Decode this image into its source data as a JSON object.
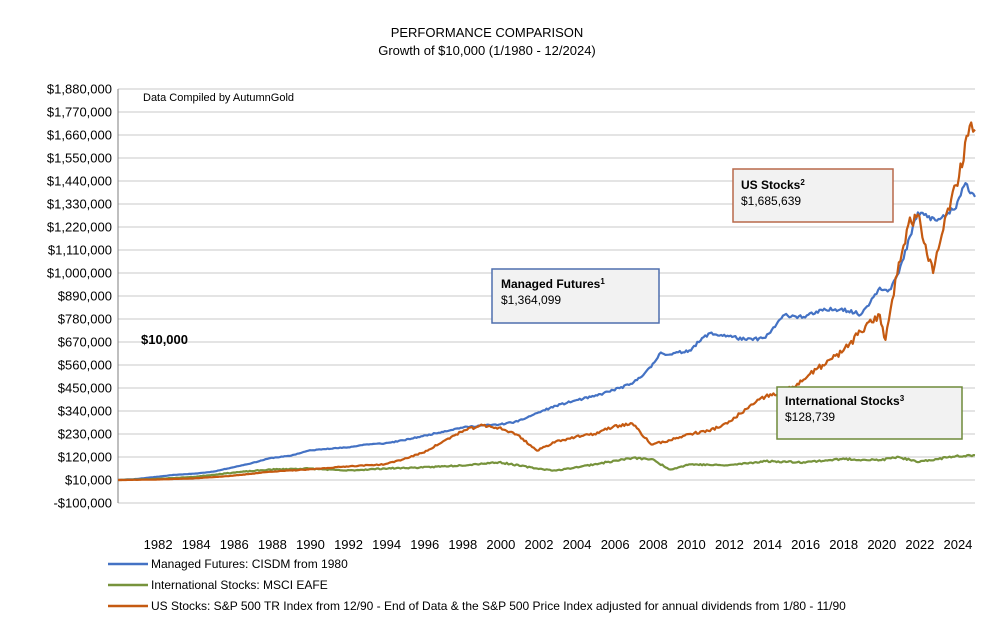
{
  "chart_data": {
    "type": "line",
    "title": "PERFORMANCE COMPARISON",
    "subtitle": "Growth of $10,000 (1/1980 - 12/2024)",
    "note": "Data Compiled by AutumnGold",
    "start_label": "$10,000",
    "xlim": [
      1980,
      2025
    ],
    "ylim": [
      -100000,
      1880000
    ],
    "y_ticks": [
      -100000,
      10000,
      120000,
      230000,
      340000,
      450000,
      560000,
      670000,
      780000,
      890000,
      1000000,
      1110000,
      1220000,
      1330000,
      1440000,
      1550000,
      1660000,
      1770000,
      1880000
    ],
    "y_tick_labels": [
      "-$100,000",
      "$10,000",
      "$120,000",
      "$230,000",
      "$340,000",
      "$450,000",
      "$560,000",
      "$670,000",
      "$780,000",
      "$890,000",
      "$1,000,000",
      "$1,110,000",
      "$1,220,000",
      "$1,330,000",
      "$1,440,000",
      "$1,550,000",
      "$1,660,000",
      "$1,770,000",
      "$1,880,000"
    ],
    "x_ticks": [
      1982,
      1984,
      1986,
      1988,
      1990,
      1992,
      1994,
      1996,
      1998,
      2000,
      2002,
      2004,
      2006,
      2008,
      2010,
      2012,
      2014,
      2016,
      2018,
      2020,
      2022,
      2024
    ],
    "x_tick_labels": [
      "1982",
      "1984",
      "1986",
      "1988",
      "1990",
      "1992",
      "1994",
      "1996",
      "1998",
      "2000",
      "2002",
      "2004",
      "2006",
      "2008",
      "2010",
      "2012",
      "2014",
      "2016",
      "2018",
      "2020",
      "2022",
      "2024"
    ],
    "grid": true,
    "legend_position": "bottom-left",
    "series": [
      {
        "name": "Managed Futures: CISDM from 1980",
        "color": "#4472c4",
        "x": [
          1980,
          1981,
          1982,
          1983,
          1984,
          1985,
          1986,
          1987,
          1988,
          1989,
          1990,
          1991,
          1992,
          1993,
          1994,
          1995,
          1996,
          1997,
          1998,
          1999,
          2000,
          2001,
          2002,
          2003,
          2004,
          2005,
          2006,
          2007,
          2008,
          2008.5,
          2009,
          2010,
          2011,
          2012,
          2013,
          2014,
          2015,
          2016,
          2017,
          2018,
          2019,
          2020,
          2020.5,
          2021,
          2022,
          2023,
          2024,
          2024.5,
          2025
        ],
        "values": [
          10000,
          15000,
          25000,
          35000,
          40000,
          50000,
          70000,
          90000,
          115000,
          125000,
          150000,
          160000,
          165000,
          180000,
          185000,
          200000,
          220000,
          240000,
          260000,
          270000,
          275000,
          290000,
          330000,
          365000,
          390000,
          410000,
          440000,
          470000,
          550000,
          620000,
          610000,
          630000,
          710000,
          700000,
          680000,
          690000,
          800000,
          790000,
          820000,
          830000,
          800000,
          930000,
          920000,
          1000000,
          1290000,
          1250000,
          1310000,
          1430000,
          1364099
        ]
      },
      {
        "name": "International Stocks: MSCI EAFE",
        "color": "#77933c",
        "x": [
          1980,
          1982,
          1984,
          1986,
          1988,
          1990,
          1992,
          1994,
          1996,
          1998,
          2000,
          2002,
          2003,
          2005,
          2007,
          2008,
          2009,
          2010,
          2012,
          2014,
          2016,
          2018,
          2020,
          2021,
          2022,
          2023,
          2024,
          2025
        ],
        "values": [
          10000,
          15000,
          25000,
          45000,
          60000,
          65000,
          55000,
          65000,
          70000,
          80000,
          95000,
          65000,
          55000,
          85000,
          115000,
          110000,
          60000,
          85000,
          80000,
          100000,
          95000,
          110000,
          105000,
          120000,
          95000,
          110000,
          125000,
          128739
        ]
      },
      {
        "name": "US Stocks: S&P 500 TR Index from 12/90 - End of Data & the S&P 500 Price Index adjusted for annual dividends from 1/80 - 11/90",
        "color": "#c55a11",
        "x": [
          1980,
          1982,
          1984,
          1986,
          1988,
          1990,
          1992,
          1994,
          1995,
          1996,
          1997,
          1998,
          1999,
          2000,
          2001,
          2002,
          2003,
          2004,
          2005,
          2006,
          2007,
          2008,
          2009,
          2010,
          2011,
          2012,
          2013,
          2014,
          2015,
          2016,
          2017,
          2018,
          2019,
          2020,
          2020.3,
          2021,
          2021.5,
          2022,
          2022.8,
          2023,
          2024,
          2024.8,
          2025
        ],
        "values": [
          10000,
          12000,
          18000,
          30000,
          50000,
          60000,
          75000,
          85000,
          110000,
          140000,
          190000,
          240000,
          270000,
          260000,
          225000,
          150000,
          195000,
          215000,
          230000,
          265000,
          280000,
          180000,
          200000,
          230000,
          245000,
          280000,
          350000,
          410000,
          430000,
          490000,
          560000,
          620000,
          720000,
          800000,
          680000,
          1050000,
          1230000,
          1280000,
          1000000,
          1100000,
          1420000,
          1720000,
          1685639
        ]
      }
    ],
    "callouts": [
      {
        "title": "Managed Futures",
        "sup": "1",
        "value": "$1,364,099"
      },
      {
        "title": "US Stocks",
        "sup": "2",
        "value": "$1,685,639"
      },
      {
        "title": "International Stocks",
        "sup": "3",
        "value": "$128,739"
      }
    ]
  }
}
